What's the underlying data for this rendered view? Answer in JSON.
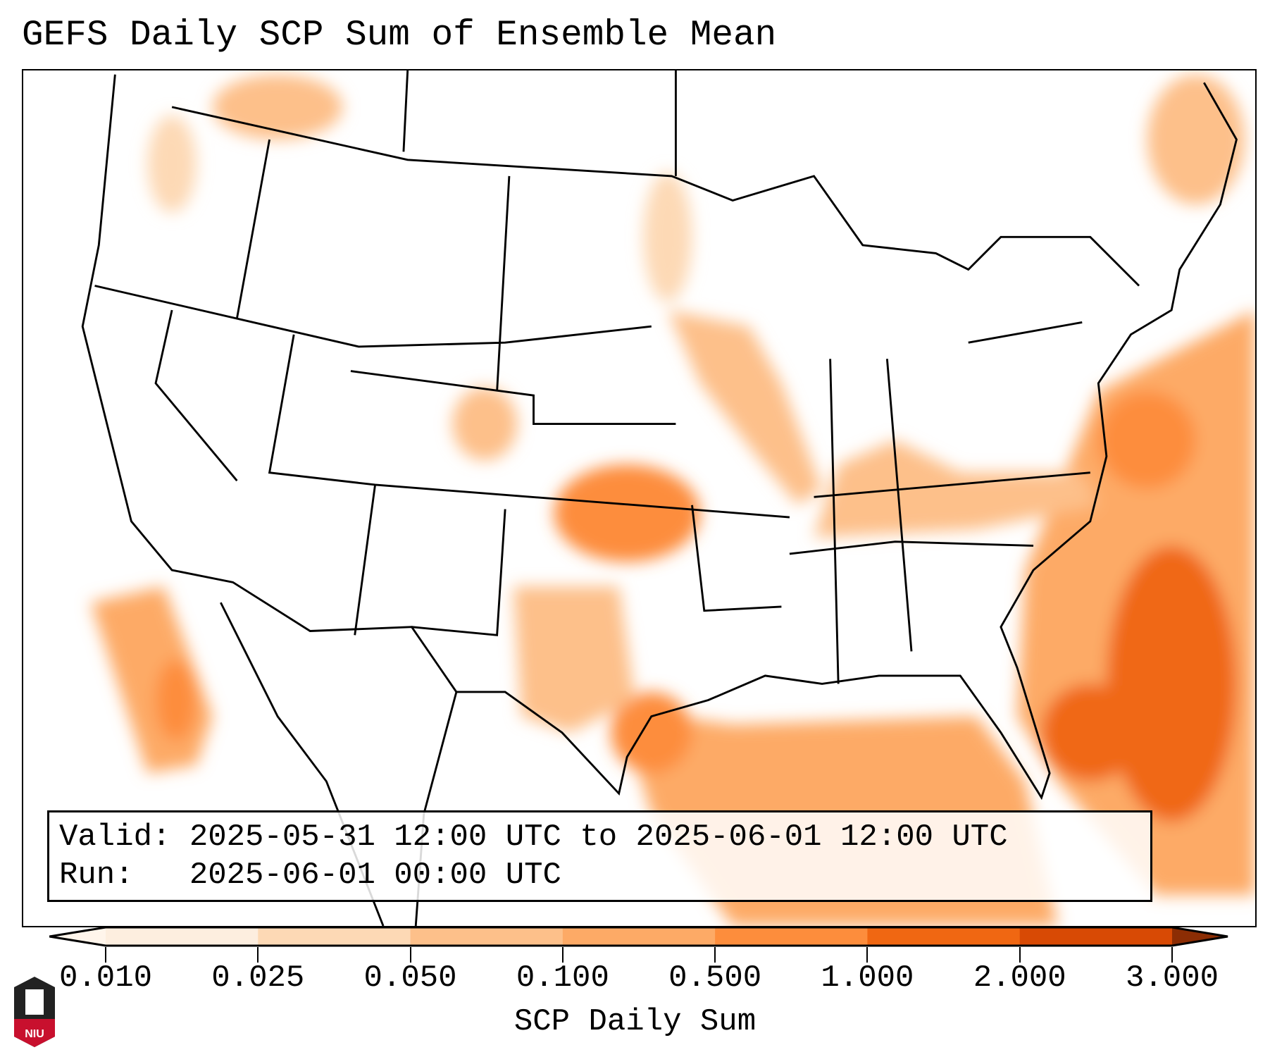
{
  "title": "GEFS Daily SCP Sum of Ensemble Mean",
  "info": {
    "valid_line": "Valid: 2025-05-31 12:00 UTC to 2025-06-01 12:00 UTC",
    "run_line": "Run:   2025-06-01 00:00 UTC"
  },
  "colorbar": {
    "label": "SCP Daily Sum",
    "ticks": [
      "0.010",
      "0.025",
      "0.050",
      "0.100",
      "0.500",
      "1.000",
      "2.000",
      "3.000"
    ],
    "colors": [
      "#fff5eb",
      "#fdeedf",
      "#fdd9b5",
      "#fdc08a",
      "#fdaa66",
      "#fd8d3c",
      "#f06712",
      "#d84a05",
      "#8c2d04"
    ]
  },
  "logo": {
    "text": "NIU"
  }
}
